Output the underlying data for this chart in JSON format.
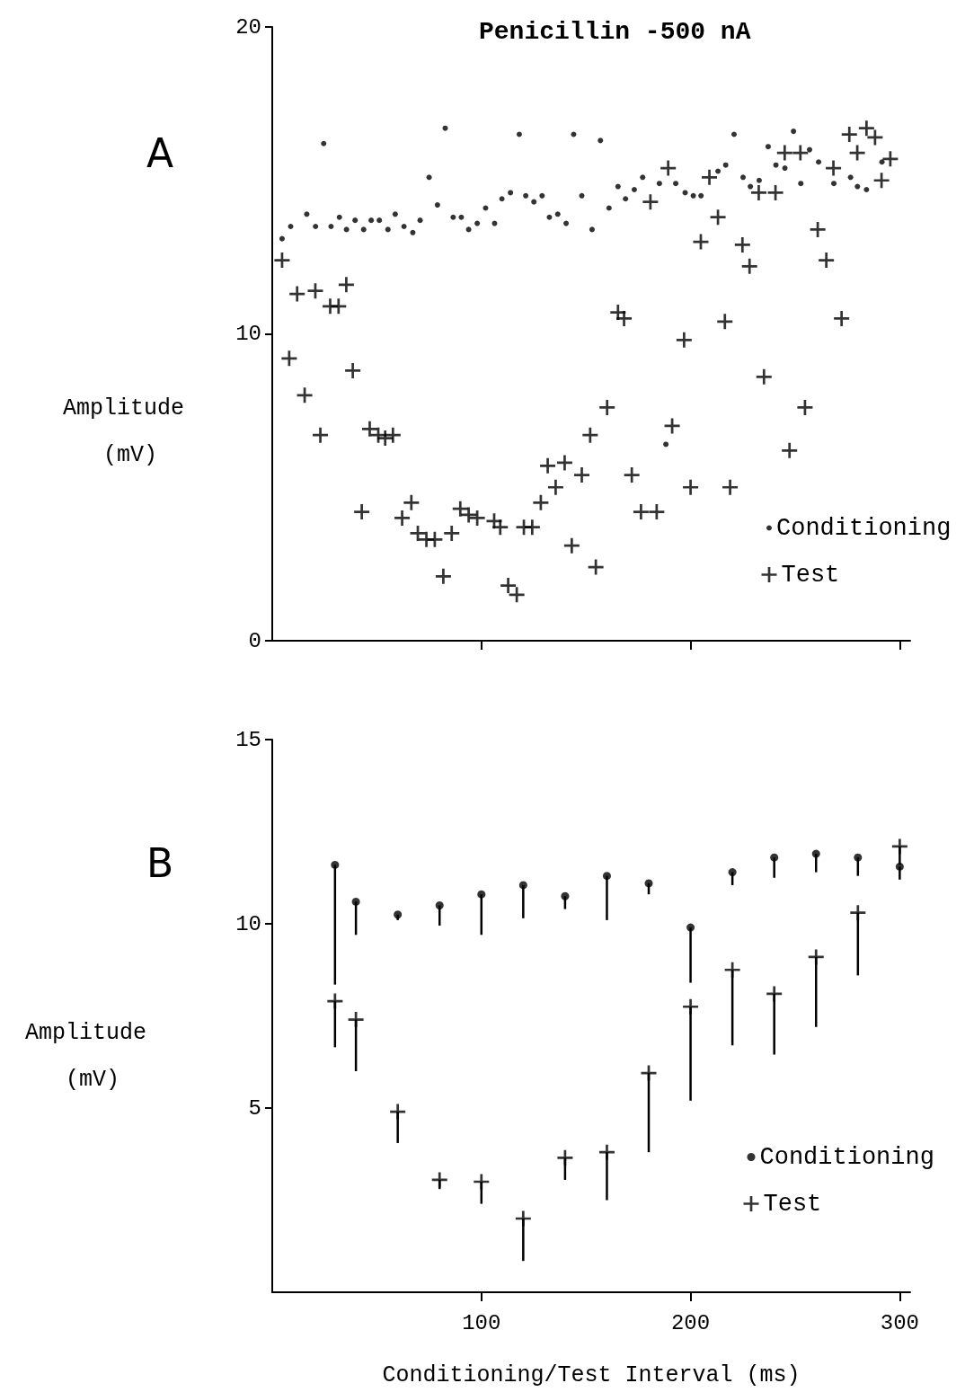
{
  "chart_data": [
    {
      "type": "scatter",
      "title": "Penicillin -500 nA",
      "ylabel": "Amplitude (mV)",
      "annotations": [
        "A"
      ],
      "xlim": [
        0,
        305
      ],
      "xticks": [
        {
          "value": 100,
          "label": null
        },
        {
          "value": 200,
          "label": null
        },
        {
          "value": 300,
          "label": null
        }
      ],
      "ylim": [
        0,
        20
      ],
      "yticks": [
        0,
        10,
        20
      ],
      "tick_labels": "y",
      "legend": "bottom right",
      "grid": false,
      "series": [
        {
          "name": "Conditioning",
          "color": "#000000",
          "marker": "circle",
          "x": [
            4.7,
            8.8,
            16.5,
            20.7,
            24.6,
            28.1,
            32.1,
            35.5,
            39.6,
            43.7,
            47.3,
            51.2,
            55.3,
            58.8,
            63,
            67.2,
            70.7,
            75,
            79,
            82.7,
            86.5,
            90.4,
            93.9,
            98,
            102,
            106.3,
            109.8,
            113.9,
            118.1,
            121.2,
            125.1,
            129,
            132.5,
            136.5,
            140.5,
            144.1,
            148,
            152.9,
            156.9,
            161,
            165.3,
            168.9,
            173.1,
            177.1,
            185.1,
            188.2,
            192.9,
            197.4,
            201.3,
            205,
            213.1,
            216.8,
            220.8,
            225.1,
            228.6,
            232.8,
            237.1,
            240.8,
            245.1,
            249.2,
            252.7,
            256.9,
            261.2,
            268.5,
            276.5,
            279.8,
            284.1,
            291.5
          ],
          "values": [
            13.1,
            13.5,
            13.9,
            13.5,
            16.2,
            13.5,
            13.8,
            13.4,
            13.7,
            13.4,
            13.7,
            13.7,
            13.4,
            13.9,
            13.5,
            13.3,
            13.7,
            15.1,
            14.2,
            16.7,
            13.8,
            13.8,
            13.4,
            13.6,
            14.1,
            13.6,
            14.4,
            14.6,
            16.5,
            14.5,
            14.3,
            14.5,
            13.8,
            13.9,
            13.6,
            16.5,
            14.5,
            13.4,
            16.3,
            14.1,
            14.8,
            14.4,
            14.7,
            15.1,
            14.9,
            6.4,
            14.9,
            14.6,
            14.5,
            14.5,
            15.3,
            15.5,
            16.5,
            15.1,
            14.8,
            15.0,
            16.1,
            15.5,
            15.4,
            16.6,
            14.9,
            16.0,
            15.6,
            14.9,
            15.1,
            14.8,
            14.7,
            15.6
          ]
        },
        {
          "name": "Test",
          "color": "#000000",
          "marker": "cross",
          "x": [
            4.7,
            8.1,
            11.9,
            15.5,
            20.6,
            23,
            27.7,
            31.7,
            35.4,
            38.5,
            42.8,
            46.6,
            50.7,
            54,
            57.7,
            62.1,
            66.5,
            69.6,
            73.7,
            77.7,
            81.8,
            85.8,
            89.9,
            93.9,
            98,
            106.1,
            109,
            112.8,
            116.9,
            120.3,
            124.3,
            128.4,
            131.7,
            135.5,
            139.8,
            143.2,
            148,
            152,
            154.7,
            160.1,
            165.3,
            168.2,
            171.9,
            176.3,
            180.8,
            183.8,
            189.3,
            191.2,
            196.9,
            200,
            204.9,
            209,
            213.1,
            216.4,
            218.9,
            224.8,
            228.2,
            232.6,
            235.1,
            240.6,
            245,
            247.3,
            252.5,
            254.7,
            260.8,
            264.9,
            268.3,
            272.2,
            275.9,
            279.7,
            284.1,
            288.2,
            291.3,
            295.5
          ],
          "values": [
            12.4,
            9.2,
            11.3,
            8.0,
            11.4,
            6.7,
            10.9,
            10.9,
            11.6,
            8.8,
            4.2,
            6.9,
            6.7,
            6.6,
            6.7,
            4.0,
            4.5,
            3.5,
            3.3,
            3.3,
            2.1,
            3.5,
            4.3,
            4.1,
            4.0,
            3.9,
            3.7,
            1.8,
            1.5,
            3.7,
            3.7,
            4.5,
            5.7,
            5.0,
            5.8,
            3.1,
            5.4,
            6.7,
            2.4,
            7.6,
            10.7,
            10.5,
            5.4,
            4.2,
            14.3,
            4.2,
            15.4,
            7.0,
            9.8,
            5.0,
            13.0,
            15.1,
            13.8,
            10.4,
            5.0,
            12.9,
            12.2,
            14.6,
            8.6,
            14.6,
            15.9,
            6.2,
            15.9,
            7.6,
            13.4,
            12.4,
            15.4,
            10.5,
            16.5,
            15.9,
            16.7,
            16.4,
            15.0,
            15.7
          ]
        }
      ]
    },
    {
      "type": "scatter",
      "ylabel": "Amplitude (mV)",
      "xlabel": "Conditioning/Test Interval (ms)",
      "annotations": [
        "B"
      ],
      "xlim": [
        0,
        305
      ],
      "xticks": [
        100,
        200,
        300
      ],
      "ylim": [
        0,
        15
      ],
      "yticks": [
        5,
        10,
        15
      ],
      "legend": "bottom right",
      "grid": false,
      "series": [
        {
          "name": "Conditioning",
          "color": "#000000",
          "marker": "circle",
          "x": [
            30,
            40,
            60,
            80,
            100,
            120,
            140,
            160,
            180,
            200,
            220,
            240,
            260,
            280,
            300
          ],
          "values": [
            11.6,
            10.6,
            10.25,
            10.5,
            10.8,
            11.05,
            10.75,
            11.3,
            11.1,
            9.9,
            11.4,
            11.8,
            11.9,
            11.8,
            11.55
          ],
          "errors": [
            [
              8.35,
              11.6
            ],
            [
              9.7,
              10.6
            ],
            [
              10.1,
              10.25
            ],
            [
              9.95,
              10.5
            ],
            [
              9.7,
              10.8
            ],
            [
              10.15,
              11.05
            ],
            [
              10.4,
              10.75
            ],
            [
              10.1,
              11.3
            ],
            [
              10.8,
              11.1
            ],
            [
              8.4,
              9.9
            ],
            [
              11.05,
              11.4
            ],
            [
              11.25,
              11.8
            ],
            [
              11.4,
              11.9
            ],
            [
              11.3,
              11.8
            ],
            [
              11.2,
              11.55
            ]
          ]
        },
        {
          "name": "Test",
          "color": "#000000",
          "marker": "cross",
          "x": [
            30,
            40,
            60,
            80,
            100,
            120,
            140,
            160,
            180,
            200,
            220,
            240,
            260,
            280,
            300
          ],
          "values": [
            7.9,
            7.4,
            4.9,
            3.05,
            3.0,
            2.0,
            3.65,
            3.8,
            5.95,
            7.75,
            8.75,
            8.1,
            9.1,
            10.3,
            12.1
          ],
          "errors": [
            [
              6.65,
              7.9
            ],
            [
              6.0,
              7.4
            ],
            [
              4.05,
              4.9
            ],
            [
              2.8,
              3.05
            ],
            [
              2.4,
              3.0
            ],
            [
              0.85,
              2.0
            ],
            [
              3.05,
              3.65
            ],
            [
              2.5,
              3.8
            ],
            [
              3.8,
              5.95
            ],
            [
              5.2,
              7.75
            ],
            [
              6.7,
              8.75
            ],
            [
              6.45,
              8.1
            ],
            [
              7.2,
              9.1
            ],
            [
              8.6,
              10.3
            ],
            [
              11.6,
              12.1
            ]
          ]
        }
      ]
    }
  ]
}
